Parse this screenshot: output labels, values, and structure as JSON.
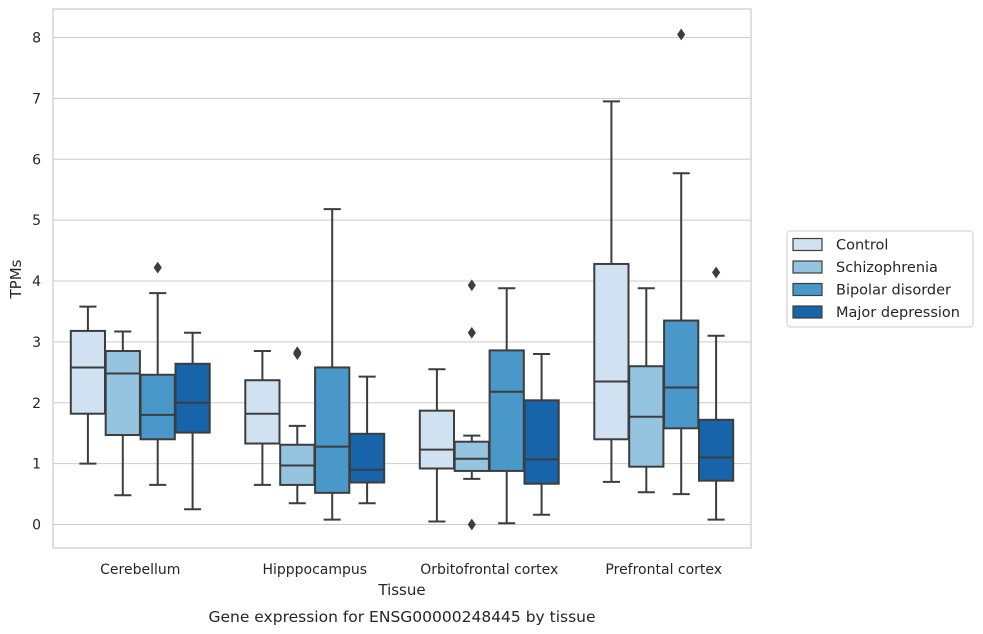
{
  "chart_data": {
    "type": "box",
    "xlabel": "Tissue",
    "ylabel": "TPMs",
    "caption": "Gene expression for ENSG00000248445 by tissue",
    "ylim": [
      -0.4,
      8.5
    ],
    "yticks": [
      0,
      1,
      2,
      3,
      4,
      5,
      6,
      7,
      8
    ],
    "grid": true,
    "legend_placement": "right",
    "categories": [
      "Cerebellum",
      "Hipppocampus",
      "Orbitofrontal cortex",
      "Prefrontal cortex"
    ],
    "series": [
      {
        "name": "Control",
        "color": "#d0e1f2",
        "boxes": [
          {
            "whislo": 1.0,
            "q1": 1.82,
            "med": 2.58,
            "q3": 3.18,
            "whishi": 3.58,
            "fliers": []
          },
          {
            "whislo": 0.65,
            "q1": 1.33,
            "med": 1.82,
            "q3": 2.37,
            "whishi": 2.85,
            "fliers": []
          },
          {
            "whislo": 0.05,
            "q1": 0.92,
            "med": 1.23,
            "q3": 1.87,
            "whishi": 2.55,
            "fliers": []
          },
          {
            "whislo": 0.7,
            "q1": 1.4,
            "med": 2.35,
            "q3": 4.28,
            "whishi": 6.95,
            "fliers": []
          }
        ]
      },
      {
        "name": "Schizophrenia",
        "color": "#94c4df",
        "boxes": [
          {
            "whislo": 0.48,
            "q1": 1.47,
            "med": 2.48,
            "q3": 2.85,
            "whishi": 3.17,
            "fliers": []
          },
          {
            "whislo": 0.35,
            "q1": 0.65,
            "med": 0.97,
            "q3": 1.31,
            "whishi": 1.62,
            "fliers": [
              2.8,
              2.83
            ]
          },
          {
            "whislo": 0.75,
            "q1": 0.88,
            "med": 1.08,
            "q3": 1.36,
            "whishi": 1.46,
            "fliers": [
              3.93,
              3.15,
              0.0
            ]
          },
          {
            "whislo": 0.53,
            "q1": 0.95,
            "med": 1.77,
            "q3": 2.6,
            "whishi": 3.88,
            "fliers": []
          }
        ]
      },
      {
        "name": "Bipolar disorder",
        "color": "#4a98c9",
        "boxes": [
          {
            "whislo": 0.65,
            "q1": 1.4,
            "med": 1.8,
            "q3": 2.46,
            "whishi": 3.8,
            "fliers": [
              4.22
            ]
          },
          {
            "whislo": 0.08,
            "q1": 0.52,
            "med": 1.28,
            "q3": 2.58,
            "whishi": 5.18,
            "fliers": []
          },
          {
            "whislo": 0.02,
            "q1": 0.88,
            "med": 2.18,
            "q3": 2.86,
            "whishi": 3.88,
            "fliers": []
          },
          {
            "whislo": 0.5,
            "q1": 1.58,
            "med": 2.25,
            "q3": 3.35,
            "whishi": 5.77,
            "fliers": [
              8.05
            ]
          }
        ]
      },
      {
        "name": "Major depression",
        "color": "#1764ab",
        "boxes": [
          {
            "whislo": 0.25,
            "q1": 1.51,
            "med": 2.0,
            "q3": 2.64,
            "whishi": 3.15,
            "fliers": []
          },
          {
            "whislo": 0.35,
            "q1": 0.69,
            "med": 0.9,
            "q3": 1.49,
            "whishi": 2.43,
            "fliers": []
          },
          {
            "whislo": 0.16,
            "q1": 0.67,
            "med": 1.07,
            "q3": 2.04,
            "whishi": 2.8,
            "fliers": []
          },
          {
            "whislo": 0.08,
            "q1": 0.72,
            "med": 1.1,
            "q3": 1.72,
            "whishi": 3.1,
            "fliers": [
              4.14
            ]
          }
        ]
      }
    ]
  }
}
